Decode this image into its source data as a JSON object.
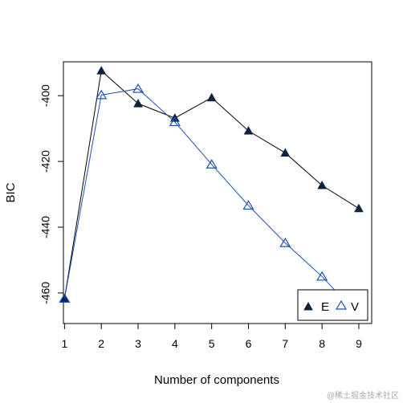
{
  "chart_data": {
    "type": "line",
    "title": "",
    "xlabel": "Number of components",
    "ylabel": "BIC",
    "x": [
      1,
      2,
      3,
      4,
      5,
      6,
      7,
      8,
      9
    ],
    "xlim": [
      0.97,
      9.35
    ],
    "ylim": [
      -469.3,
      -389.7
    ],
    "xticks": [
      1,
      2,
      3,
      4,
      5,
      6,
      7,
      8,
      9
    ],
    "yticks": [
      -400,
      -420,
      -440,
      -460
    ],
    "grid": false,
    "legend_position": "bottom-right",
    "series": [
      {
        "name": "E",
        "marker": "filled-triangle",
        "color": "#000000",
        "marker_color": "#0c2340",
        "values": [
          -461.7,
          -392.4,
          -402.4,
          -406.8,
          -400.6,
          -410.7,
          -417.4,
          -427.3,
          -434.3
        ]
      },
      {
        "name": "V",
        "marker": "open-triangle",
        "color": "#1a4fb5",
        "marker_color": "#1a4fb5",
        "values": [
          -461.7,
          -399.8,
          -397.9,
          -408.0,
          -420.9,
          -433.4,
          -444.8,
          -455.0,
          -466.9
        ]
      }
    ]
  },
  "watermark": {
    "text": "@稀土掘金技术社区"
  }
}
